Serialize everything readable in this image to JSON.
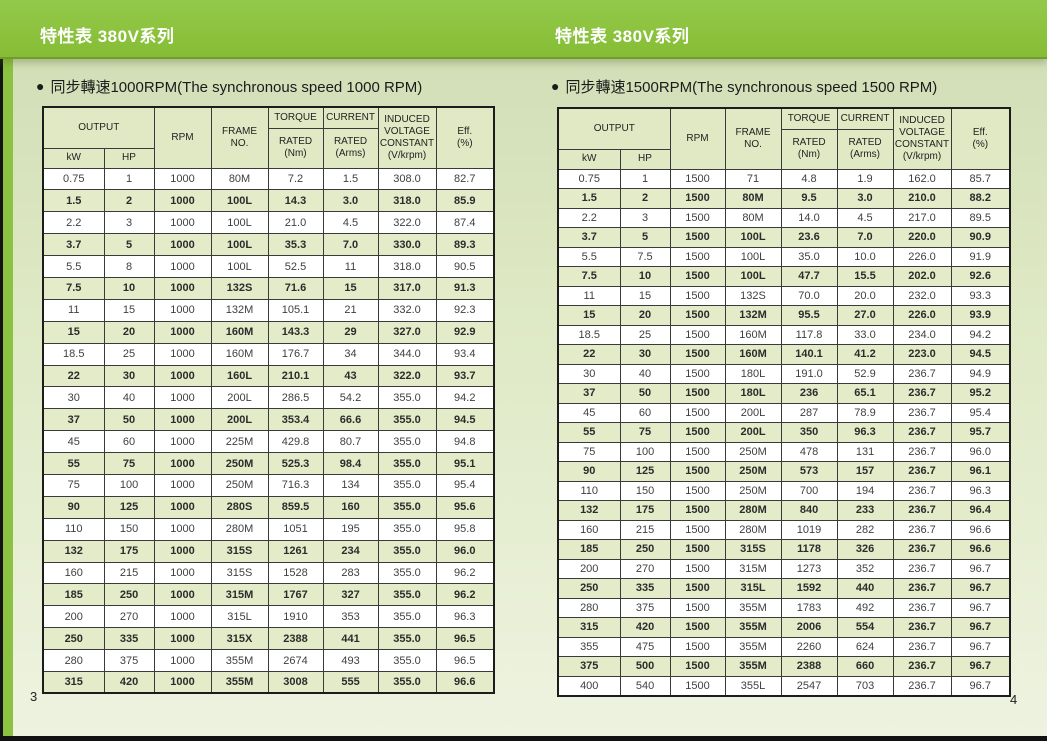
{
  "colors": {
    "banner_green": "#8cc241",
    "page_background": "#dde8c3",
    "row_shaded": "#e3ebc8",
    "row_white": "#ffffff",
    "header_cell": "#e0e9c3",
    "table_border": "#1c1c1c"
  },
  "glyphs": {
    "bullet": "●"
  },
  "banner": {
    "left_title": "特性表 380V系列",
    "right_title": "特性表 380V系列"
  },
  "table_header": {
    "output": "OUTPUT",
    "kw": "kW",
    "hp": "HP",
    "rpm": "RPM",
    "frame": "FRAME\nNO.",
    "torque": "TORQUE",
    "current": "CURRENT",
    "rated_nm": "RATED\n(Nm)",
    "rated_arms": "RATED\n(Arms)",
    "induced": "INDUCED\nVOLTAGE\nCONSTANT\n(V/krpm)",
    "eff": "Eff.\n(%)"
  },
  "pages": [
    {
      "page_number": "3",
      "section_title": "同步轉速1000RPM(The synchronous speed 1000 RPM)",
      "table": {
        "rows": [
          [
            "0.75",
            "1",
            "1000",
            "80M",
            "7.2",
            "1.5",
            "308.0",
            "82.7"
          ],
          [
            "1.5",
            "2",
            "1000",
            "100L",
            "14.3",
            "3.0",
            "318.0",
            "85.9"
          ],
          [
            "2.2",
            "3",
            "1000",
            "100L",
            "21.0",
            "4.5",
            "322.0",
            "87.4"
          ],
          [
            "3.7",
            "5",
            "1000",
            "100L",
            "35.3",
            "7.0",
            "330.0",
            "89.3"
          ],
          [
            "5.5",
            "8",
            "1000",
            "100L",
            "52.5",
            "11",
            "318.0",
            "90.5"
          ],
          [
            "7.5",
            "10",
            "1000",
            "132S",
            "71.6",
            "15",
            "317.0",
            "91.3"
          ],
          [
            "11",
            "15",
            "1000",
            "132M",
            "105.1",
            "21",
            "332.0",
            "92.3"
          ],
          [
            "15",
            "20",
            "1000",
            "160M",
            "143.3",
            "29",
            "327.0",
            "92.9"
          ],
          [
            "18.5",
            "25",
            "1000",
            "160M",
            "176.7",
            "34",
            "344.0",
            "93.4"
          ],
          [
            "22",
            "30",
            "1000",
            "160L",
            "210.1",
            "43",
            "322.0",
            "93.7"
          ],
          [
            "30",
            "40",
            "1000",
            "200L",
            "286.5",
            "54.2",
            "355.0",
            "94.2"
          ],
          [
            "37",
            "50",
            "1000",
            "200L",
            "353.4",
            "66.6",
            "355.0",
            "94.5"
          ],
          [
            "45",
            "60",
            "1000",
            "225M",
            "429.8",
            "80.7",
            "355.0",
            "94.8"
          ],
          [
            "55",
            "75",
            "1000",
            "250M",
            "525.3",
            "98.4",
            "355.0",
            "95.1"
          ],
          [
            "75",
            "100",
            "1000",
            "250M",
            "716.3",
            "134",
            "355.0",
            "95.4"
          ],
          [
            "90",
            "125",
            "1000",
            "280S",
            "859.5",
            "160",
            "355.0",
            "95.6"
          ],
          [
            "110",
            "150",
            "1000",
            "280M",
            "1051",
            "195",
            "355.0",
            "95.8"
          ],
          [
            "132",
            "175",
            "1000",
            "315S",
            "1261",
            "234",
            "355.0",
            "96.0"
          ],
          [
            "160",
            "215",
            "1000",
            "315S",
            "1528",
            "283",
            "355.0",
            "96.2"
          ],
          [
            "185",
            "250",
            "1000",
            "315M",
            "1767",
            "327",
            "355.0",
            "96.2"
          ],
          [
            "200",
            "270",
            "1000",
            "315L",
            "1910",
            "353",
            "355.0",
            "96.3"
          ],
          [
            "250",
            "335",
            "1000",
            "315X",
            "2388",
            "441",
            "355.0",
            "96.5"
          ],
          [
            "280",
            "375",
            "1000",
            "355M",
            "2674",
            "493",
            "355.0",
            "96.5"
          ],
          [
            "315",
            "420",
            "1000",
            "355M",
            "3008",
            "555",
            "355.0",
            "96.6"
          ]
        ]
      }
    },
    {
      "page_number": "4",
      "section_title": "同步轉速1500RPM(The synchronous speed 1500 RPM)",
      "table": {
        "rows": [
          [
            "0.75",
            "1",
            "1500",
            "71",
            "4.8",
            "1.9",
            "162.0",
            "85.7"
          ],
          [
            "1.5",
            "2",
            "1500",
            "80M",
            "9.5",
            "3.0",
            "210.0",
            "88.2"
          ],
          [
            "2.2",
            "3",
            "1500",
            "80M",
            "14.0",
            "4.5",
            "217.0",
            "89.5"
          ],
          [
            "3.7",
            "5",
            "1500",
            "100L",
            "23.6",
            "7.0",
            "220.0",
            "90.9"
          ],
          [
            "5.5",
            "7.5",
            "1500",
            "100L",
            "35.0",
            "10.0",
            "226.0",
            "91.9"
          ],
          [
            "7.5",
            "10",
            "1500",
            "100L",
            "47.7",
            "15.5",
            "202.0",
            "92.6"
          ],
          [
            "11",
            "15",
            "1500",
            "132S",
            "70.0",
            "20.0",
            "232.0",
            "93.3"
          ],
          [
            "15",
            "20",
            "1500",
            "132M",
            "95.5",
            "27.0",
            "226.0",
            "93.9"
          ],
          [
            "18.5",
            "25",
            "1500",
            "160M",
            "117.8",
            "33.0",
            "234.0",
            "94.2"
          ],
          [
            "22",
            "30",
            "1500",
            "160M",
            "140.1",
            "41.2",
            "223.0",
            "94.5"
          ],
          [
            "30",
            "40",
            "1500",
            "180L",
            "191.0",
            "52.9",
            "236.7",
            "94.9"
          ],
          [
            "37",
            "50",
            "1500",
            "180L",
            "236",
            "65.1",
            "236.7",
            "95.2"
          ],
          [
            "45",
            "60",
            "1500",
            "200L",
            "287",
            "78.9",
            "236.7",
            "95.4"
          ],
          [
            "55",
            "75",
            "1500",
            "200L",
            "350",
            "96.3",
            "236.7",
            "95.7"
          ],
          [
            "75",
            "100",
            "1500",
            "250M",
            "478",
            "131",
            "236.7",
            "96.0"
          ],
          [
            "90",
            "125",
            "1500",
            "250M",
            "573",
            "157",
            "236.7",
            "96.1"
          ],
          [
            "110",
            "150",
            "1500",
            "250M",
            "700",
            "194",
            "236.7",
            "96.3"
          ],
          [
            "132",
            "175",
            "1500",
            "280M",
            "840",
            "233",
            "236.7",
            "96.4"
          ],
          [
            "160",
            "215",
            "1500",
            "280M",
            "1019",
            "282",
            "236.7",
            "96.6"
          ],
          [
            "185",
            "250",
            "1500",
            "315S",
            "1178",
            "326",
            "236.7",
            "96.6"
          ],
          [
            "200",
            "270",
            "1500",
            "315M",
            "1273",
            "352",
            "236.7",
            "96.7"
          ],
          [
            "250",
            "335",
            "1500",
            "315L",
            "1592",
            "440",
            "236.7",
            "96.7"
          ],
          [
            "280",
            "375",
            "1500",
            "355M",
            "1783",
            "492",
            "236.7",
            "96.7"
          ],
          [
            "315",
            "420",
            "1500",
            "355M",
            "2006",
            "554",
            "236.7",
            "96.7"
          ],
          [
            "355",
            "475",
            "1500",
            "355M",
            "2260",
            "624",
            "236.7",
            "96.7"
          ],
          [
            "375",
            "500",
            "1500",
            "355M",
            "2388",
            "660",
            "236.7",
            "96.7"
          ],
          [
            "400",
            "540",
            "1500",
            "355L",
            "2547",
            "703",
            "236.7",
            "96.7"
          ]
        ]
      }
    }
  ]
}
